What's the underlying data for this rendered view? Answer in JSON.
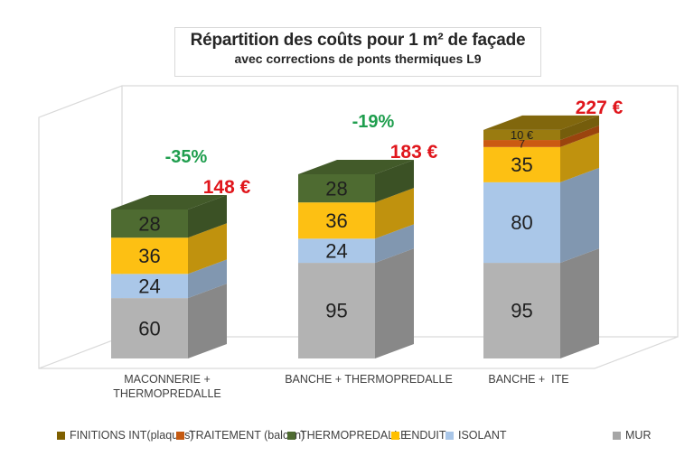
{
  "chart_data": {
    "type": "bar",
    "stacked": true,
    "effect": "3d",
    "grid": false,
    "legend_position": "bottom",
    "title": "Répartition des coûts pour 1 m² de façade",
    "subtitle": "avec corrections de ponts thermiques L9",
    "value_unit": "€",
    "categories": [
      "MACONNERIE + THERMOPREDALLE",
      "BANCHE + THERMOPREDALLE",
      "BANCHE +  ITE"
    ],
    "category_lines": [
      [
        "MACONNERIE +",
        "THERMOPREDALLE"
      ],
      [
        "BANCHE + THERMOPREDALLE"
      ],
      [
        "BANCHE +  ITE"
      ]
    ],
    "series": [
      {
        "name": "MUR",
        "color": "#b3b3b3",
        "values": [
          60,
          95,
          95
        ],
        "labels": [
          "60",
          "95",
          "95"
        ]
      },
      {
        "name": "ISOLANT",
        "color": "#aac7e8",
        "values": [
          24,
          24,
          80
        ],
        "labels": [
          "24",
          "24",
          "80"
        ]
      },
      {
        "name": "ENDUIT",
        "color": "#fdc013",
        "values": [
          36,
          36,
          35
        ],
        "labels": [
          "36",
          "36",
          "35"
        ]
      },
      {
        "name": "THERMOPREDALLE",
        "color": "#4e6b31",
        "values": [
          28,
          28,
          0
        ],
        "labels": [
          "28",
          "28",
          ""
        ]
      },
      {
        "name": "TRAITEMENT (balcon)",
        "color": "#cb5a12",
        "values": [
          0,
          0,
          7
        ],
        "labels": [
          "",
          "",
          "7"
        ]
      },
      {
        "name": "FINITIONS INT(plaques)",
        "color": "#9a7b10",
        "values": [
          0,
          0,
          10
        ],
        "labels": [
          "",
          "",
          "10 €"
        ]
      }
    ],
    "totals": [
      148,
      183,
      227
    ],
    "total_labels": [
      "148 €",
      "183 €",
      "227 €"
    ],
    "percent_labels": [
      "-35%",
      "-19%",
      null
    ],
    "legend": [
      {
        "label": "FINITIONS INT(plaques)",
        "color": "#7f6000"
      },
      {
        "label": "TRAITEMENT (balcon)",
        "color": "#c55a11"
      },
      {
        "label": "THERMOPREDALLE",
        "color": "#4e6b31"
      },
      {
        "label": "ENDUIT",
        "color": "#ffc000"
      },
      {
        "label": "ISOLANT",
        "color": "#a9c6e8"
      },
      {
        "label": "MUR",
        "color": "#a6a6a6"
      }
    ],
    "colors": {
      "percent_label": "#1f9e4e",
      "total_label": "#e0161c",
      "frame_line": "#d9d9d9",
      "segment_text": "#1f1f1f"
    }
  }
}
